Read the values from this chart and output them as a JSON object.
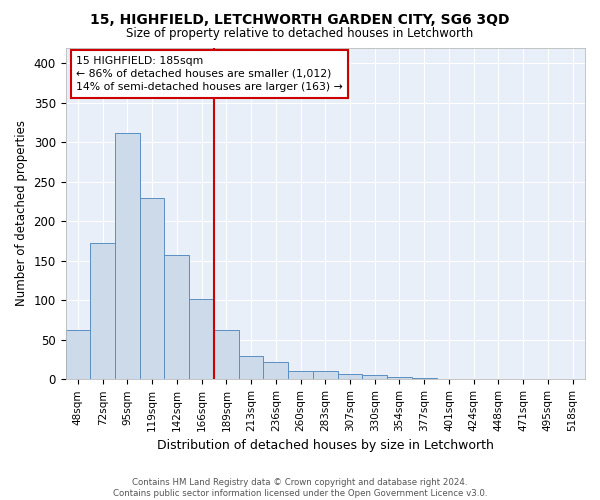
{
  "title": "15, HIGHFIELD, LETCHWORTH GARDEN CITY, SG6 3QD",
  "subtitle": "Size of property relative to detached houses in Letchworth",
  "xlabel": "Distribution of detached houses by size in Letchworth",
  "ylabel": "Number of detached properties",
  "categories": [
    "48sqm",
    "72sqm",
    "95sqm",
    "119sqm",
    "142sqm",
    "166sqm",
    "189sqm",
    "213sqm",
    "236sqm",
    "260sqm",
    "283sqm",
    "307sqm",
    "330sqm",
    "354sqm",
    "377sqm",
    "401sqm",
    "424sqm",
    "448sqm",
    "471sqm",
    "495sqm",
    "518sqm"
  ],
  "values": [
    63,
    173,
    312,
    230,
    157,
    102,
    62,
    29,
    22,
    10,
    10,
    7,
    5,
    3,
    2,
    1,
    1,
    1,
    0,
    1,
    1
  ],
  "bar_color": "#ccdaea",
  "bar_edge_color": "#5a8fc3",
  "vline_color": "#cc0000",
  "vline_index": 6,
  "annotation_line1": "15 HIGHFIELD: 185sqm",
  "annotation_line2": "← 86% of detached houses are smaller (1,012)",
  "annotation_line3": "14% of semi-detached houses are larger (163) →",
  "annotation_box_color": "#cc0000",
  "ylim": [
    0,
    420
  ],
  "yticks": [
    0,
    50,
    100,
    150,
    200,
    250,
    300,
    350,
    400
  ],
  "plot_bg_color": "#e8eff8",
  "grid_color": "#ffffff",
  "footer_line1": "Contains HM Land Registry data © Crown copyright and database right 2024.",
  "footer_line2": "Contains public sector information licensed under the Open Government Licence v3.0."
}
